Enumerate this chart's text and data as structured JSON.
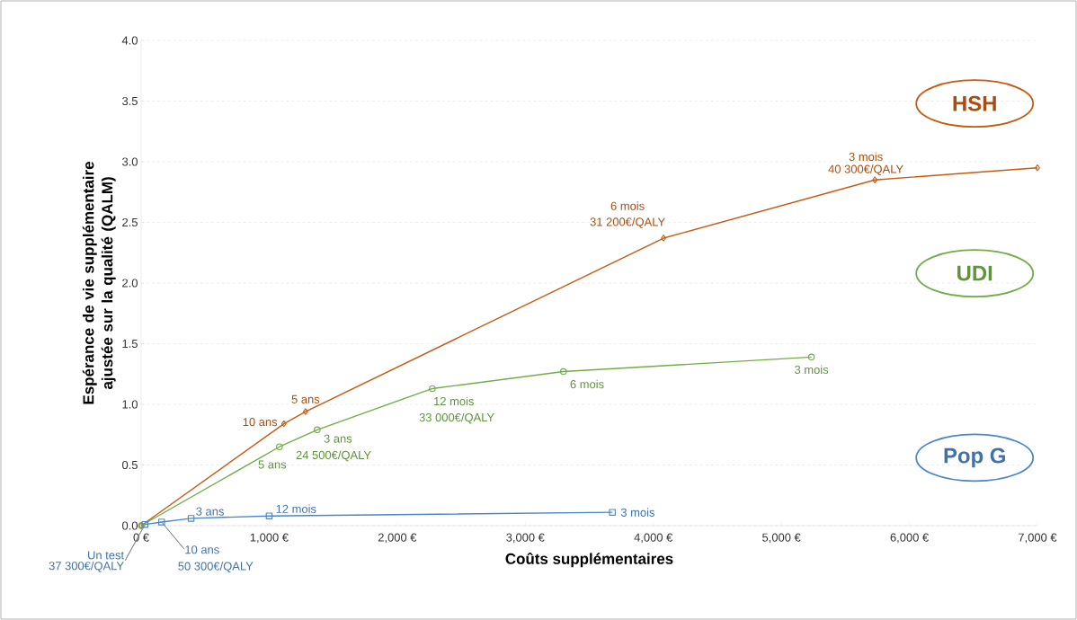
{
  "chart_data": {
    "type": "line",
    "xlabel": "Coûts supplémentaires",
    "ylabel": "Espérance de vie supplémentaire ajustée sur la qualité (QALM)",
    "xlim": [
      0,
      7000
    ],
    "ylim": [
      0,
      4
    ],
    "xticks": [
      {
        "value": 0,
        "label": "0 €"
      },
      {
        "value": 1000,
        "label": "1,000 €"
      },
      {
        "value": 2000,
        "label": "2,000 €"
      },
      {
        "value": 3000,
        "label": "3,000 €"
      },
      {
        "value": 4000,
        "label": "4,000 €"
      },
      {
        "value": 5000,
        "label": "5,000 €"
      },
      {
        "value": 6000,
        "label": "6,000 €"
      },
      {
        "value": 7000,
        "label": "7,000 €"
      }
    ],
    "yticks": [
      {
        "value": 0,
        "label": "0.0"
      },
      {
        "value": 0.5,
        "label": "0.5"
      },
      {
        "value": 1,
        "label": "1.0"
      },
      {
        "value": 1.5,
        "label": "1.5"
      },
      {
        "value": 2,
        "label": "2.0"
      },
      {
        "value": 2.5,
        "label": "2.5"
      },
      {
        "value": 3,
        "label": "3.0"
      },
      {
        "value": 3.5,
        "label": "3.5"
      },
      {
        "value": 4,
        "label": "4.0"
      }
    ],
    "grid": "y",
    "legend": "right",
    "series": [
      {
        "name": "HSH",
        "color": "#c55a11",
        "marker": "diamond",
        "x": [
          0,
          1115,
          1284,
          4080,
          5730,
          7000
        ],
        "values": [
          0,
          0.84,
          0.94,
          2.37,
          2.85,
          2.95
        ]
      },
      {
        "name": "UDI",
        "color": "#70ad47",
        "marker": "circle",
        "x": [
          0,
          1080,
          1375,
          2274,
          3298,
          5235
        ],
        "values": [
          0,
          0.65,
          0.79,
          1.13,
          1.27,
          1.39
        ]
      },
      {
        "name": "Pop G",
        "color": "#4a86c8",
        "marker": "square",
        "x": [
          30,
          160,
          390,
          1000,
          3680
        ],
        "values": [
          0.01,
          0.03,
          0.06,
          0.08,
          0.11
        ]
      }
    ],
    "annotations": [
      {
        "text": "10 ans",
        "x": 1115,
        "y": 0.84
      },
      {
        "text": "5 ans",
        "x": 1284,
        "y": 0.94
      },
      {
        "text": "6 mois",
        "x": 4080,
        "y": 2.37
      },
      {
        "text": "31 200€/QALY",
        "x": 4080,
        "y": 2.37
      },
      {
        "text": "3 mois",
        "x": 5730,
        "y": 2.85
      },
      {
        "text": "40 300€/QALY",
        "x": 5730,
        "y": 2.85
      },
      {
        "text": "5 ans",
        "x": 1080,
        "y": 0.65
      },
      {
        "text": "3 ans",
        "x": 1375,
        "y": 0.79
      },
      {
        "text": "24 500€/QALY",
        "x": 1375,
        "y": 0.79
      },
      {
        "text": "12 mois",
        "x": 2274,
        "y": 1.13
      },
      {
        "text": "33 000€/QALY",
        "x": 2274,
        "y": 1.13
      },
      {
        "text": "6 mois",
        "x": 3298,
        "y": 1.27
      },
      {
        "text": "3 mois",
        "x": 5235,
        "y": 1.39
      },
      {
        "text": "Un test",
        "x": 30,
        "y": 0.01
      },
      {
        "text": "37 300€/QALY",
        "x": 30,
        "y": 0.01
      },
      {
        "text": "10 ans",
        "x": 160,
        "y": 0.03
      },
      {
        "text": "50 300€/QALY",
        "x": 160,
        "y": 0.03
      },
      {
        "text": "3 ans",
        "x": 390,
        "y": 0.06
      },
      {
        "text": "12 mois",
        "x": 1000,
        "y": 0.08
      },
      {
        "text": "3 mois",
        "x": 3680,
        "y": 0.11
      }
    ]
  }
}
